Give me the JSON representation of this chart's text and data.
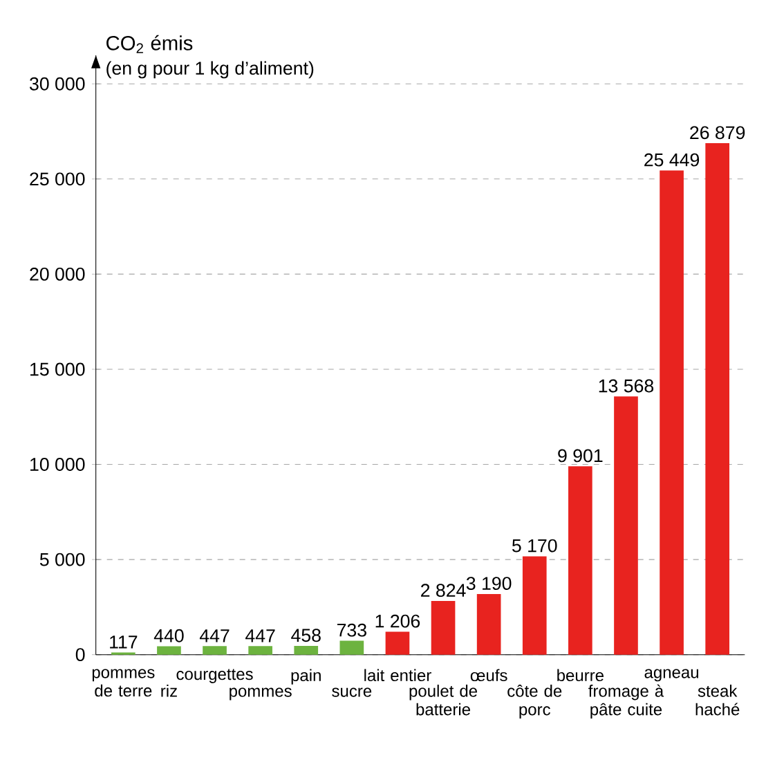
{
  "chart_data": {
    "type": "bar",
    "ylabel": "CO$_{2}$ émis",
    "annotations": [
      "(en g pour 1 kg d’aliment)"
    ],
    "categories": [
      "pommes de terre",
      "riz",
      "courgettes",
      "pommes",
      "pain",
      "sucre",
      "lait entier",
      "poulet de batterie",
      "œufs",
      "côte de porc",
      "beurre",
      "fromage à pâte cuite",
      "agneau",
      "steak haché"
    ],
    "values": [
      117,
      440,
      447,
      447,
      458,
      733,
      1206,
      2824,
      3190,
      5170,
      9901,
      13568,
      25449,
      26879
    ],
    "value_labels": [
      "117",
      "440",
      "447",
      "447",
      "458",
      "733",
      "1 206",
      "2 824",
      "3 190",
      "5 170",
      "9 901",
      "13 568",
      "25 449",
      "26 879"
    ],
    "colors": [
      "#6db33f",
      "#6db33f",
      "#6db33f",
      "#6db33f",
      "#6db33f",
      "#6db33f",
      "#e8231f",
      "#e8231f",
      "#e8231f",
      "#e8231f",
      "#e8231f",
      "#e8231f",
      "#e8231f",
      "#e8231f"
    ],
    "ylim": [
      0,
      31500
    ],
    "yticks": [
      0,
      {
        "value": 5000,
        "label": "5 000"
      },
      {
        "value": 10000,
        "label": "10 000"
      },
      {
        "value": 15000,
        "label": "15 000"
      },
      {
        "value": 20000,
        "label": "20 000"
      },
      {
        "value": 25000,
        "label": "25 000"
      },
      {
        "value": 30000,
        "label": "30 000"
      }
    ],
    "grid": "y",
    "data_labels": false
  }
}
